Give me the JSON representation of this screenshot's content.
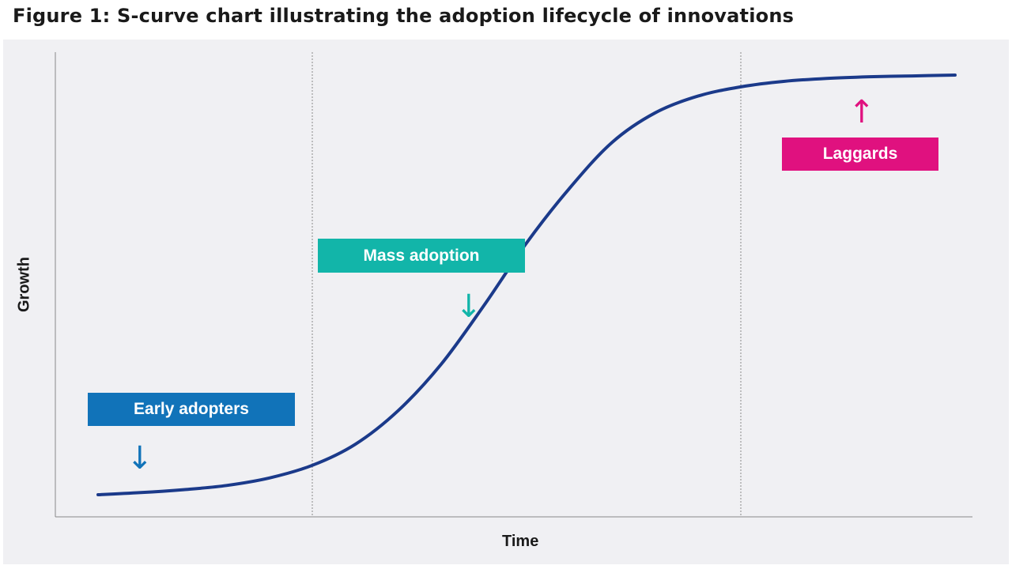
{
  "title": "Figure 1: S-curve chart illustrating the adoption lifecycle of innovations",
  "colors": {
    "curve": "#1b3a8a",
    "early": "#1173b9",
    "mass": "#12b5a9",
    "laggards": "#e0117f",
    "background": "#f0f0f3",
    "divider": "#8a8a8a"
  },
  "chart_data": {
    "type": "line",
    "xlabel": "Time",
    "ylabel": "Growth",
    "grid": false,
    "legend": "none",
    "series": [
      {
        "x": [
          0.0,
          0.05,
          0.1,
          0.15,
          0.2,
          0.25,
          0.3,
          0.35,
          0.4,
          0.45,
          0.5,
          0.55,
          0.6,
          0.65,
          0.7,
          0.75,
          0.8,
          0.85,
          0.9,
          0.95,
          1.0
        ],
        "values": [
          0.0,
          0.005,
          0.012,
          0.022,
          0.04,
          0.07,
          0.12,
          0.2,
          0.31,
          0.45,
          0.6,
          0.73,
          0.84,
          0.91,
          0.95,
          0.972,
          0.985,
          0.992,
          0.996,
          0.998,
          1.0
        ]
      }
    ],
    "phase_dividers_x": [
      0.25,
      0.75
    ],
    "annotations": [
      {
        "label": "Early adopters",
        "arrow": "↓"
      },
      {
        "label": "Mass adoption",
        "arrow": "↓"
      },
      {
        "label": "Laggards",
        "arrow": "↑"
      }
    ]
  }
}
